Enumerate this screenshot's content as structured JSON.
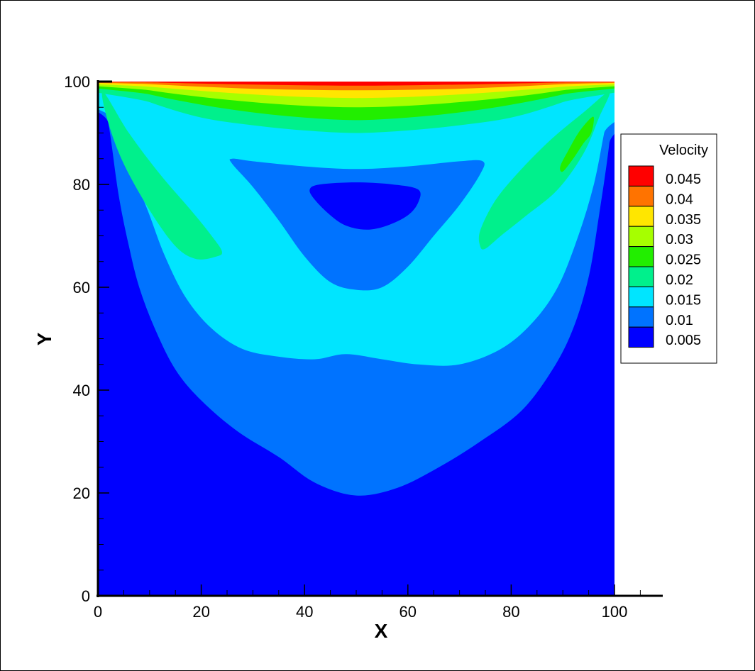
{
  "chart_data": {
    "type": "contour",
    "xlabel": "X",
    "ylabel": "Y",
    "xlim": [
      0,
      100
    ],
    "ylim": [
      0,
      100
    ],
    "xticks": [
      0,
      20,
      40,
      60,
      80,
      100
    ],
    "yticks": [
      0,
      20,
      40,
      60,
      80,
      100
    ],
    "legend": {
      "title": "Velocity",
      "placement": "right",
      "levels": [
        {
          "label": "0.045",
          "color": "#ff0000"
        },
        {
          "label": "0.04",
          "color": "#ff7300"
        },
        {
          "label": "0.035",
          "color": "#ffe600"
        },
        {
          "label": "0.03",
          "color": "#a6ff00"
        },
        {
          "label": "0.025",
          "color": "#22ee00"
        },
        {
          "label": "0.02",
          "color": "#00f08c"
        },
        {
          "label": "0.015",
          "color": "#00e5ff"
        },
        {
          "label": "0.01",
          "color": "#0073ff"
        },
        {
          "label": "0.005",
          "color": "#0000ff"
        }
      ]
    },
    "regions": [
      {
        "level": "0.005",
        "color": "#0000ff",
        "pts": [
          [
            0,
            0
          ],
          [
            100,
            0
          ],
          [
            100,
            100
          ],
          [
            0,
            100
          ]
        ]
      },
      {
        "level": "0.01",
        "color": "#0073ff",
        "pts": [
          [
            0,
            100
          ],
          [
            2,
            92
          ],
          [
            4,
            78
          ],
          [
            6,
            68
          ],
          [
            8,
            60
          ],
          [
            11,
            52
          ],
          [
            15,
            44
          ],
          [
            20,
            38
          ],
          [
            27,
            32
          ],
          [
            35,
            27
          ],
          [
            42,
            22
          ],
          [
            50,
            19.5
          ],
          [
            58,
            21
          ],
          [
            66,
            25
          ],
          [
            74,
            30
          ],
          [
            82,
            36
          ],
          [
            88,
            44
          ],
          [
            92,
            52
          ],
          [
            95,
            62
          ],
          [
            97,
            74
          ],
          [
            99,
            88
          ],
          [
            100,
            100
          ]
        ]
      },
      {
        "level": "0.015",
        "color": "#00e5ff",
        "pts": [
          [
            0,
            100
          ],
          [
            4,
            92
          ],
          [
            7,
            82
          ],
          [
            10,
            74
          ],
          [
            13,
            66
          ],
          [
            17,
            58
          ],
          [
            22,
            52
          ],
          [
            28,
            48
          ],
          [
            35,
            46.5
          ],
          [
            42,
            46
          ],
          [
            48,
            47
          ],
          [
            55,
            46
          ],
          [
            62,
            45
          ],
          [
            70,
            45
          ],
          [
            78,
            48
          ],
          [
            84,
            53
          ],
          [
            89,
            60
          ],
          [
            93,
            70
          ],
          [
            96,
            80
          ],
          [
            98,
            90
          ],
          [
            100,
            100
          ]
        ]
      },
      {
        "level": "0.02",
        "color": "#00f08c",
        "pts": [
          [
            1,
            98
          ],
          [
            6,
            90
          ],
          [
            12,
            82
          ],
          [
            18,
            75
          ],
          [
            22,
            70
          ],
          [
            24,
            67
          ],
          [
            23,
            66
          ],
          [
            19,
            65.5
          ],
          [
            15,
            68
          ],
          [
            10,
            75
          ],
          [
            5,
            84
          ],
          [
            2,
            92
          ]
        ]
      },
      {
        "level": "0.02",
        "color": "#00f08c",
        "pts": [
          [
            99,
            98
          ],
          [
            97,
            93
          ],
          [
            94,
            86
          ],
          [
            89,
            79
          ],
          [
            83,
            74
          ],
          [
            78,
            70
          ],
          [
            75,
            67.5
          ],
          [
            74,
            68
          ],
          [
            74,
            71
          ],
          [
            77,
            77
          ],
          [
            82,
            83
          ],
          [
            88,
            89
          ],
          [
            94,
            94
          ]
        ]
      },
      {
        "level": "0.02",
        "color": "#00f08c",
        "pts": [
          [
            0,
            100
          ],
          [
            10,
            96
          ],
          [
            20,
            93
          ],
          [
            30,
            91.5
          ],
          [
            40,
            90.5
          ],
          [
            50,
            90
          ],
          [
            60,
            90.5
          ],
          [
            70,
            91.5
          ],
          [
            80,
            93
          ],
          [
            90,
            96
          ],
          [
            100,
            100
          ]
        ]
      },
      {
        "level": "0.025",
        "color": "#22ee00",
        "pts": [
          [
            96,
            93
          ],
          [
            95.5,
            90
          ],
          [
            94,
            88
          ],
          [
            92,
            85
          ],
          [
            90,
            82.5
          ],
          [
            89.5,
            83.5
          ],
          [
            91,
            86.5
          ],
          [
            93,
            90
          ],
          [
            95,
            92.5
          ]
        ]
      },
      {
        "level": "0.025",
        "color": "#22ee00",
        "pts": [
          [
            0,
            100
          ],
          [
            10,
            97.5
          ],
          [
            20,
            95.5
          ],
          [
            30,
            94
          ],
          [
            40,
            93
          ],
          [
            50,
            92.5
          ],
          [
            60,
            93
          ],
          [
            70,
            94
          ],
          [
            80,
            95.5
          ],
          [
            90,
            97.5
          ],
          [
            100,
            100
          ]
        ]
      },
      {
        "level": "0.03",
        "color": "#a6ff00",
        "pts": [
          [
            0,
            100
          ],
          [
            10,
            98.3
          ],
          [
            20,
            97
          ],
          [
            30,
            96
          ],
          [
            40,
            95.3
          ],
          [
            50,
            95
          ],
          [
            60,
            95.3
          ],
          [
            70,
            96
          ],
          [
            80,
            97
          ],
          [
            90,
            98.3
          ],
          [
            100,
            100
          ]
        ]
      },
      {
        "level": "0.035",
        "color": "#ffe600",
        "pts": [
          [
            0,
            100
          ],
          [
            10,
            99
          ],
          [
            20,
            98.2
          ],
          [
            30,
            97.5
          ],
          [
            40,
            97
          ],
          [
            50,
            96.8
          ],
          [
            60,
            97
          ],
          [
            70,
            97.5
          ],
          [
            80,
            98.2
          ],
          [
            90,
            99
          ],
          [
            100,
            100
          ]
        ]
      },
      {
        "level": "0.04",
        "color": "#ff7300",
        "pts": [
          [
            0,
            100
          ],
          [
            10,
            99.5
          ],
          [
            20,
            99
          ],
          [
            30,
            98.6
          ],
          [
            40,
            98.4
          ],
          [
            50,
            98.3
          ],
          [
            60,
            98.4
          ],
          [
            70,
            98.6
          ],
          [
            80,
            99
          ],
          [
            90,
            99.5
          ],
          [
            100,
            100
          ]
        ]
      },
      {
        "level": "0.045",
        "color": "#ff0000",
        "pts": [
          [
            2,
            100
          ],
          [
            12,
            99.8
          ],
          [
            25,
            99.5
          ],
          [
            38,
            99.3
          ],
          [
            50,
            99.2
          ],
          [
            62,
            99.3
          ],
          [
            75,
            99.5
          ],
          [
            88,
            99.8
          ],
          [
            98,
            100
          ]
        ]
      },
      {
        "level": "0.01",
        "color": "#0073ff",
        "pts": [
          [
            26,
            85
          ],
          [
            30,
            84.5
          ],
          [
            40,
            83.5
          ],
          [
            50,
            83
          ],
          [
            60,
            83.5
          ],
          [
            70,
            84.5
          ],
          [
            74.5,
            84.5
          ],
          [
            74,
            82
          ],
          [
            70,
            76
          ],
          [
            65,
            70
          ],
          [
            60,
            64
          ],
          [
            55,
            60
          ],
          [
            50,
            59.5
          ],
          [
            45,
            61
          ],
          [
            40,
            66
          ],
          [
            35,
            73
          ],
          [
            30,
            79.5
          ],
          [
            26,
            84
          ]
        ]
      },
      {
        "level": "0.005",
        "color": "#0000ff",
        "pts": [
          [
            41,
            79
          ],
          [
            43,
            80
          ],
          [
            50,
            80.4
          ],
          [
            57,
            80
          ],
          [
            62,
            79
          ],
          [
            62,
            76.5
          ],
          [
            60,
            74
          ],
          [
            56,
            72
          ],
          [
            52,
            71.2
          ],
          [
            48,
            72
          ],
          [
            45,
            74
          ],
          [
            42,
            77
          ]
        ]
      }
    ]
  }
}
